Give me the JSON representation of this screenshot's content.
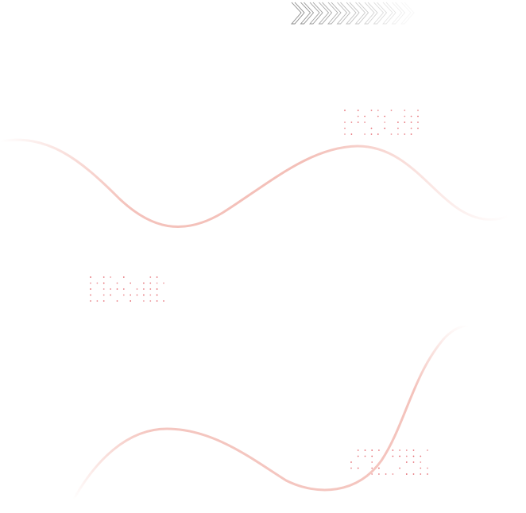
{
  "colors": {
    "background": "#ffffff",
    "wave": "#f2b8b0",
    "dots": "#e0525a",
    "chevron": "#8a8a8a"
  },
  "decorations": {
    "chevron_count": 13,
    "dot_groups": 3,
    "waves": 2
  }
}
